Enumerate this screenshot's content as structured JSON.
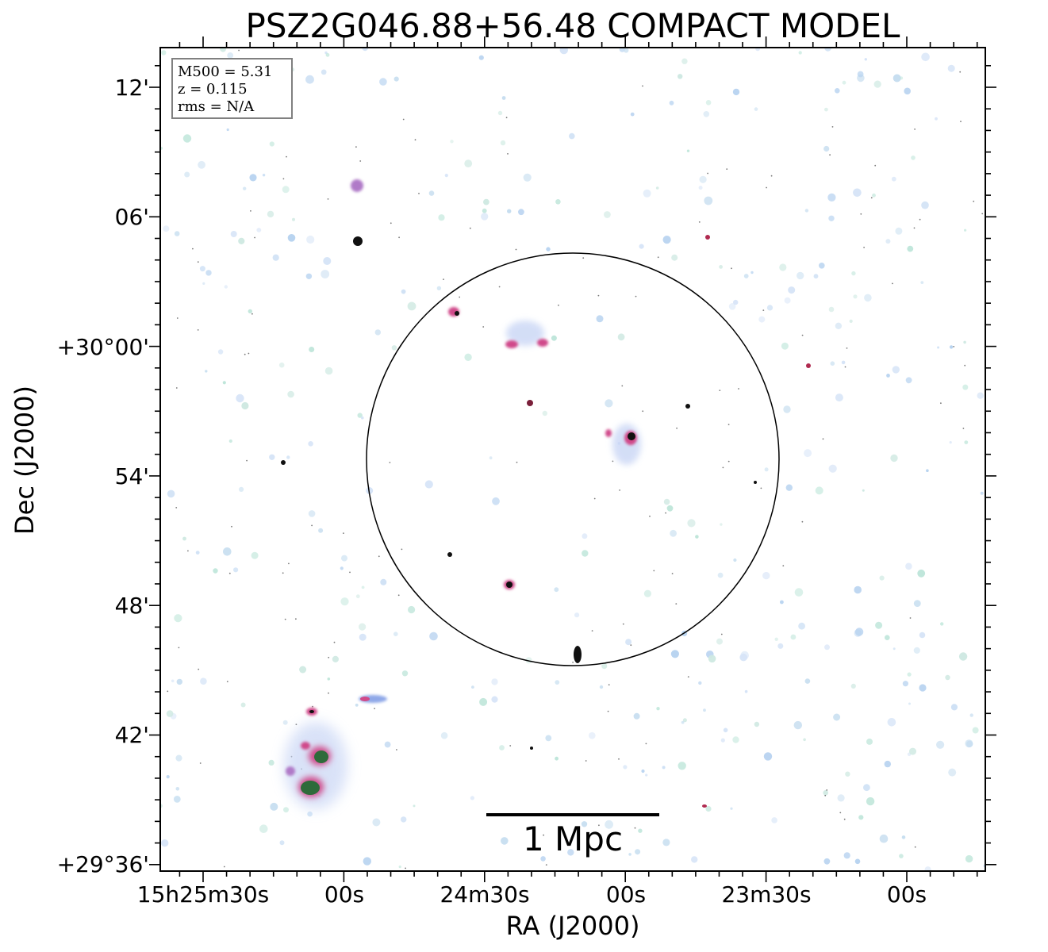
{
  "title": "PSZ2G046.88+56.48 COMPACT MODEL",
  "info_box": {
    "lines": [
      "M500 = 5.31",
      "z = 0.115",
      "rms = N/A"
    ]
  },
  "axes": {
    "xlabel": "RA (J2000)",
    "ylabel": "Dec (J2000)",
    "x_ticks": [
      "15h25m30s",
      "00s",
      "24m30s",
      "00s",
      "23m30s",
      "00s"
    ],
    "y_ticks": [
      "12'",
      "06'",
      "+30°00'",
      "54'",
      "48'",
      "42'",
      "+29°36'"
    ]
  },
  "scale_bar": {
    "label": "1 Mpc"
  },
  "colors": {
    "frame": "#000000",
    "faint_source": "#bfe6da",
    "blue_source": "#8fa8e8",
    "magenta_source": "#d04a8a",
    "core": "#101010",
    "green_core": "#2e6b3a"
  }
}
